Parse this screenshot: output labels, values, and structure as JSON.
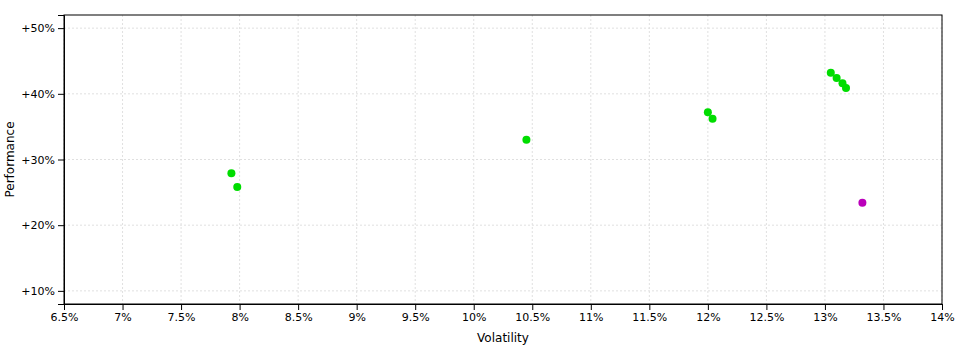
{
  "chart_data": {
    "type": "scatter",
    "xlabel": "Volatility",
    "ylabel": "Performance",
    "xlim": [
      0.065,
      0.14
    ],
    "ylim": [
      0.08,
      0.52
    ],
    "xticks": [
      {
        "value": 0.065,
        "label": "6.5%"
      },
      {
        "value": 0.07,
        "label": "7%"
      },
      {
        "value": 0.075,
        "label": "7.5%"
      },
      {
        "value": 0.08,
        "label": "8%"
      },
      {
        "value": 0.085,
        "label": "8.5%"
      },
      {
        "value": 0.09,
        "label": "9%"
      },
      {
        "value": 0.095,
        "label": "9.5%"
      },
      {
        "value": 0.1,
        "label": "10%"
      },
      {
        "value": 0.105,
        "label": "10.5%"
      },
      {
        "value": 0.11,
        "label": "11%"
      },
      {
        "value": 0.115,
        "label": "11.5%"
      },
      {
        "value": 0.12,
        "label": "12%"
      },
      {
        "value": 0.125,
        "label": "12.5%"
      },
      {
        "value": 0.13,
        "label": "13%"
      },
      {
        "value": 0.135,
        "label": "13.5%"
      },
      {
        "value": 0.14,
        "label": "14%"
      }
    ],
    "yticks": [
      {
        "value": 0.1,
        "label": "+10%"
      },
      {
        "value": 0.2,
        "label": "+20%"
      },
      {
        "value": 0.3,
        "label": "+30%"
      },
      {
        "value": 0.4,
        "label": "+40%"
      },
      {
        "value": 0.5,
        "label": "+50%"
      }
    ],
    "grid": true,
    "series": [
      {
        "color": "#00dd00",
        "x": [
          0.1305,
          0.131,
          0.1315,
          0.1318,
          0.12,
          0.1204,
          0.1045,
          0.0793,
          0.0798
        ],
        "values": [
          0.432,
          0.424,
          0.416,
          0.409,
          0.372,
          0.362,
          0.33,
          0.279,
          0.258
        ]
      },
      {
        "color": "#bb00bb",
        "x": [
          0.1332
        ],
        "values": [
          0.234
        ]
      }
    ]
  }
}
